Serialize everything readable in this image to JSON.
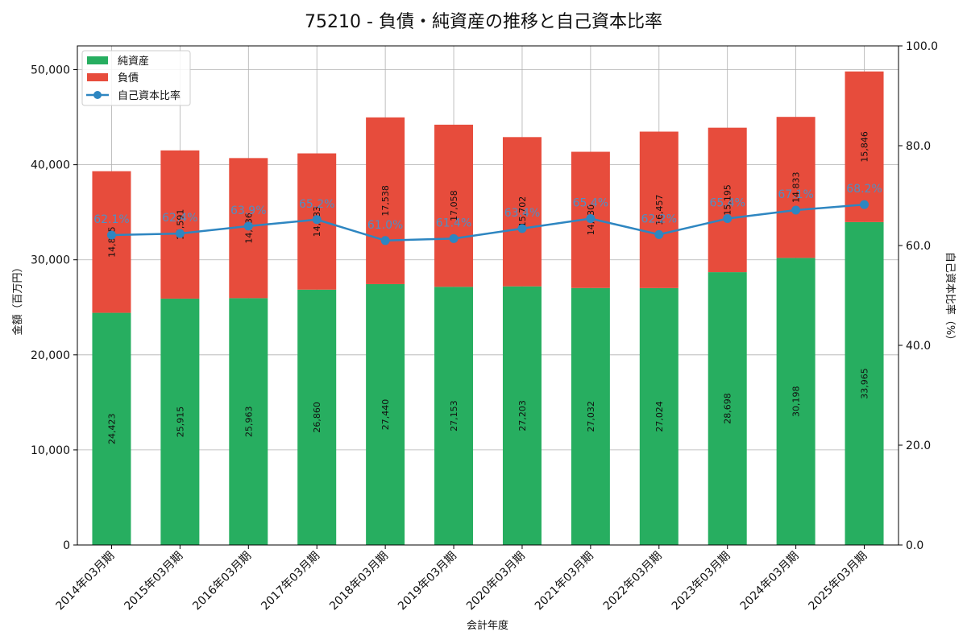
{
  "chart_data": {
    "type": "bar",
    "title": "75210 - 負債・純資産の推移と自己資本比率",
    "xlabel": "会計年度",
    "ylabel": "金額（百万円）",
    "y2label": "自己資本比率（%）",
    "ylim": [
      0,
      52500
    ],
    "y2lim": [
      0,
      100
    ],
    "yticks": [
      0,
      10000,
      20000,
      30000,
      40000,
      50000
    ],
    "ytick_labels": [
      "0",
      "10,000",
      "20,000",
      "30,000",
      "40,000",
      "50,000"
    ],
    "y2ticks": [
      0,
      20,
      40,
      60,
      80,
      100
    ],
    "y2tick_labels": [
      "0.0",
      "20.0",
      "40.0",
      "60.0",
      "80.0",
      "100.0"
    ],
    "stacked": true,
    "grid": true,
    "legend_position": "top-left",
    "categories": [
      "2014年03月期",
      "2015年03月期",
      "2016年03月期",
      "2017年03月期",
      "2018年03月期",
      "2019年03月期",
      "2020年03月期",
      "2021年03月期",
      "2022年03月期",
      "2023年03月期",
      "2024年03月期",
      "2025年03月期"
    ],
    "series": [
      {
        "name": "純資産",
        "kind": "bar",
        "color": "#27ae60",
        "values": [
          24423,
          25915,
          25963,
          26860,
          27440,
          27153,
          27203,
          27032,
          27024,
          28698,
          30198,
          33965
        ],
        "labels": [
          "24,423",
          "25,915",
          "25,963",
          "26,860",
          "27,440",
          "27,153",
          "27,203",
          "27,032",
          "27,024",
          "28,698",
          "30,198",
          "33,965"
        ]
      },
      {
        "name": "負債",
        "kind": "bar",
        "color": "#e74c3c",
        "values": [
          14895,
          15591,
          14736,
          14333,
          17538,
          17058,
          15702,
          14330,
          16457,
          15195,
          14833,
          15846
        ],
        "labels": [
          "14,895",
          "15,591",
          "14,736",
          "14,333",
          "17,538",
          "17,058",
          "15,702",
          "14,330",
          "16,457",
          "15,195",
          "14,833",
          "15,846"
        ]
      },
      {
        "name": "自己資本比率",
        "kind": "line",
        "axis": "right",
        "color": "#2e86c1",
        "values": [
          62.1,
          62.4,
          63.9,
          65.2,
          61.0,
          61.4,
          63.4,
          65.4,
          62.2,
          65.4,
          67.1,
          68.2
        ],
        "labels": [
          "62.1%",
          "62.4%",
          "63.9%",
          "65.2%",
          "61.0%",
          "61.4%",
          "63.4%",
          "65.4%",
          "62.2%",
          "65.4%",
          "67.1%",
          "68.2%"
        ]
      }
    ]
  }
}
